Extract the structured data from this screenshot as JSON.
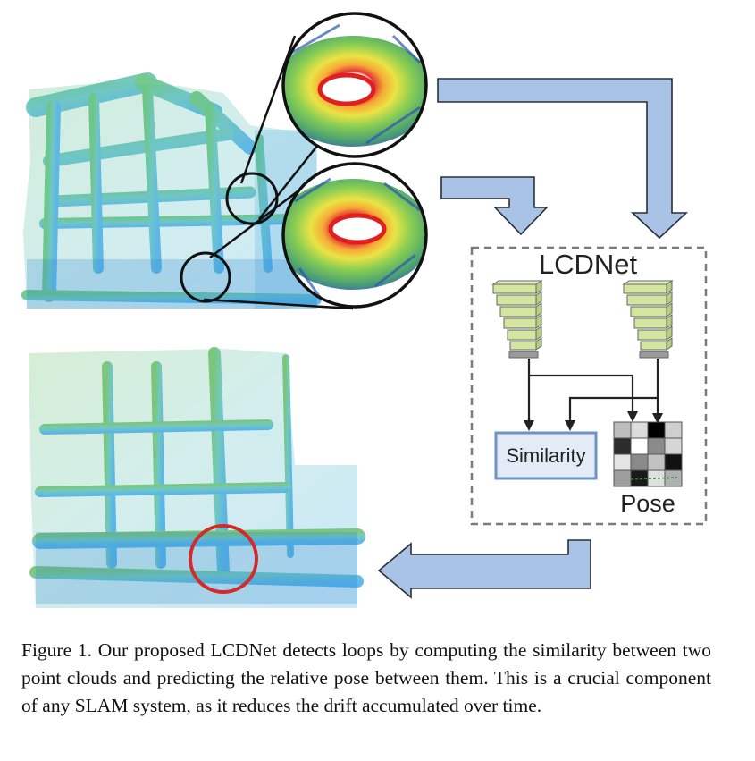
{
  "network": {
    "title": "LCDNet",
    "similarity_label": "Similarity",
    "pose_label": "Pose"
  },
  "colors": {
    "arrow_fill": "#a8c3e6",
    "arrow_stroke": "#2a2f38",
    "similarity_border": "#6f93c4",
    "encoder_fill": "#d3e6a0",
    "loop_circle": "#d42a2a"
  },
  "caption": {
    "text": "Figure 1.  Our proposed LCDNet detects loops by computing the similarity between two point clouds and predicting the relative pose between them. This is a crucial component of any SLAM system, as it reduces the drift accumulated over time."
  }
}
